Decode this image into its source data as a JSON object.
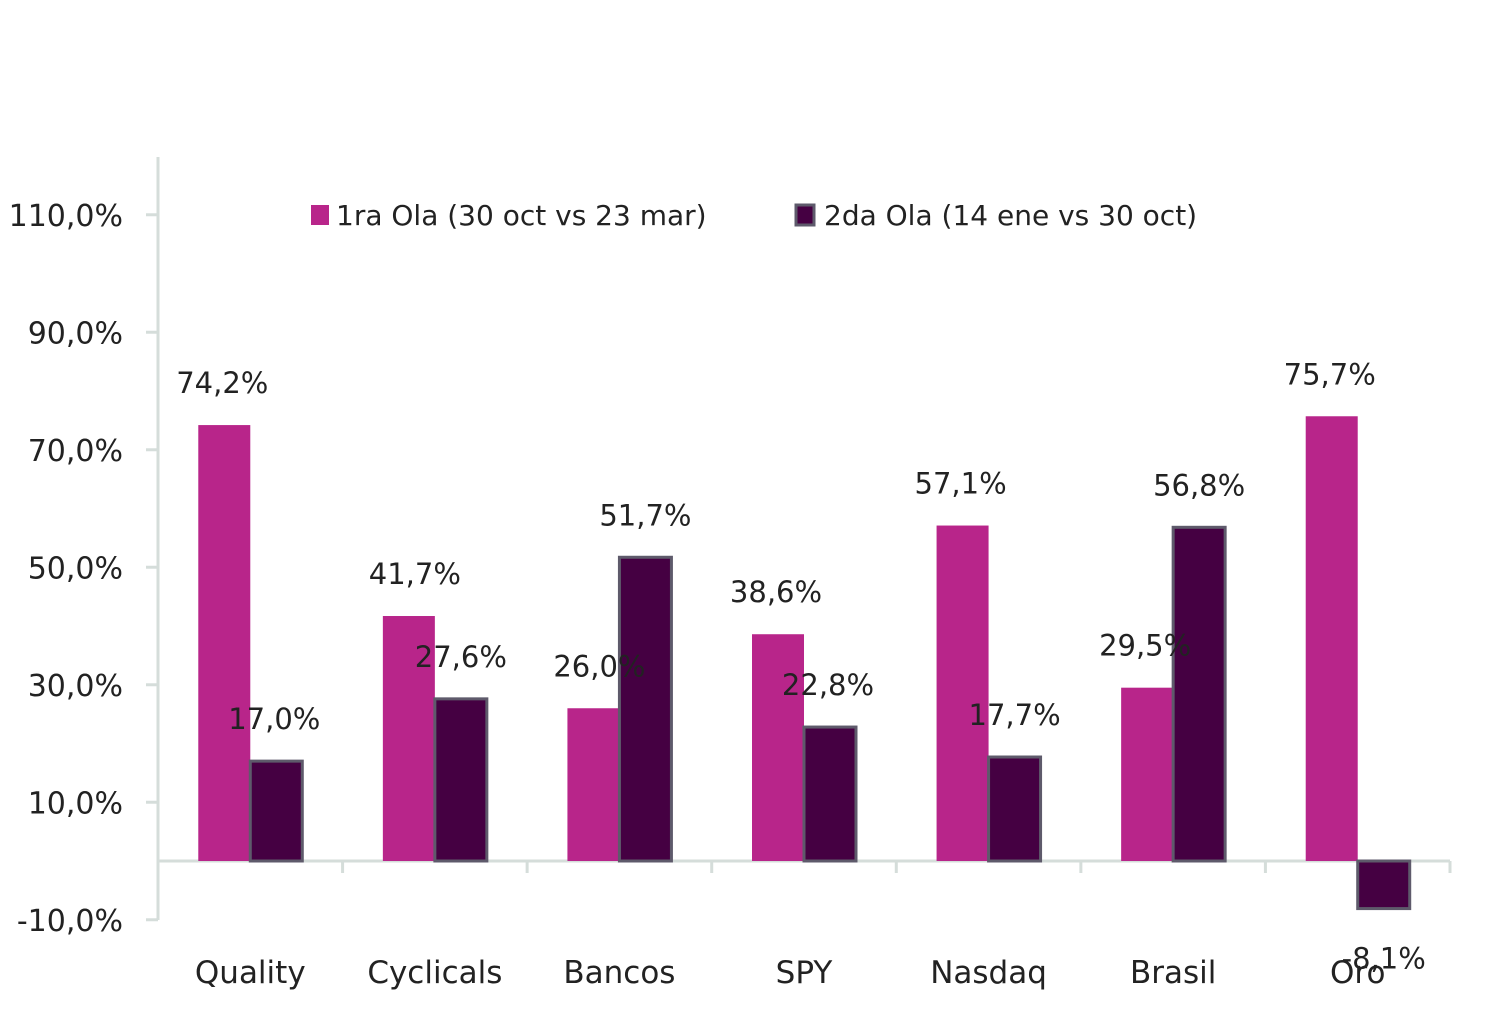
{
  "chart_data": {
    "type": "bar",
    "categories": [
      "Quality",
      "Cyclicals",
      "Bancos",
      "SPY",
      "Nasdaq",
      "Brasil",
      "Oro"
    ],
    "series": [
      {
        "name": "1ra Ola (30 oct vs 23 mar)",
        "values": [
          74.2,
          41.7,
          26.0,
          38.6,
          57.1,
          29.5,
          75.7
        ],
        "labels": [
          "74,2%",
          "41,7%",
          "26,0%",
          "38,6%",
          "57,1%",
          "29,5%",
          "75,7%"
        ],
        "color": "#B8258A"
      },
      {
        "name": "2da Ola (14 ene vs 30 oct)",
        "values": [
          17.0,
          27.6,
          51.7,
          22.8,
          17.7,
          56.8,
          -8.1
        ],
        "labels": [
          "17,0%",
          "27,6%",
          "51,7%",
          "22,8%",
          "17,7%",
          "56,8%",
          "-8,1%"
        ],
        "color": "#450042",
        "border_color": "#5E5A6B"
      }
    ],
    "ytick_values": [
      -10,
      10,
      30,
      50,
      70,
      90,
      110
    ],
    "ytick_labels": [
      "-10,0%",
      "10,0%",
      "30,0%",
      "50,0%",
      "70,0%",
      "90,0%",
      "110,0%"
    ],
    "ylim": [
      -10,
      120
    ],
    "axis_color": "#D5DDDA",
    "legend_position": "top-center",
    "grid": false
  }
}
